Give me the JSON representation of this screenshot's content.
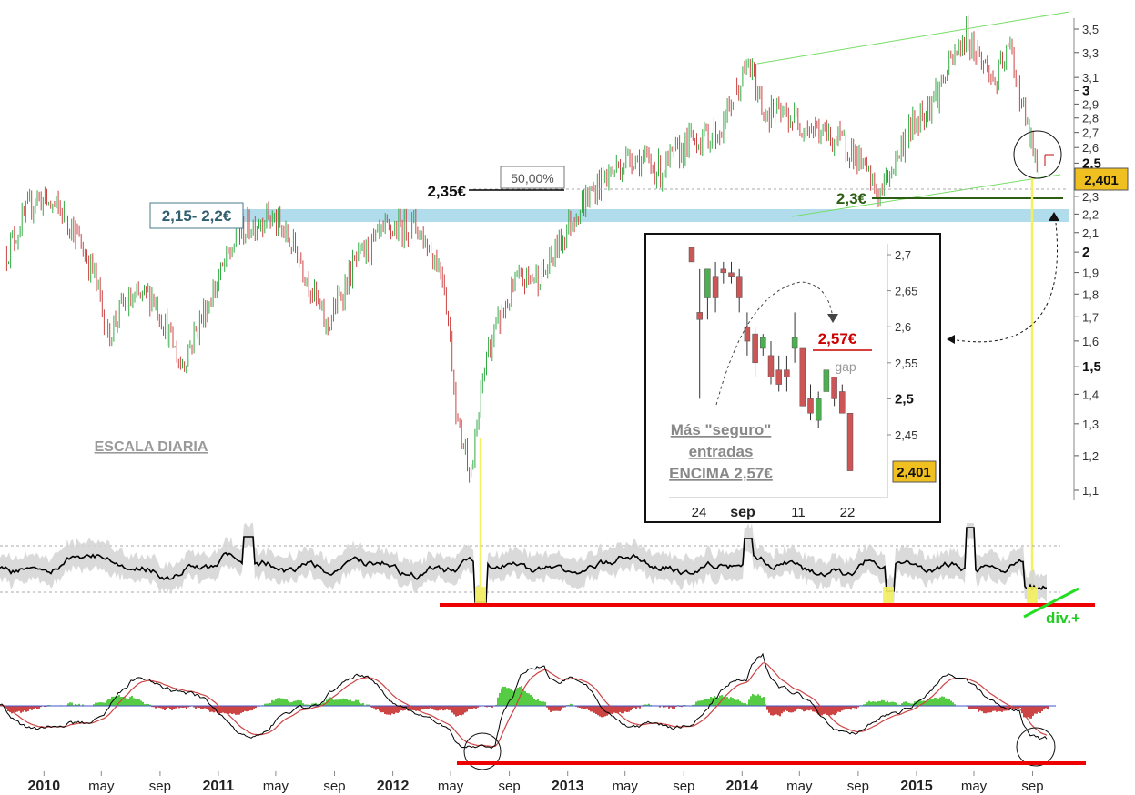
{
  "chart_data": [
    {
      "type": "line",
      "panel": "price",
      "scale": "log",
      "ylim": [
        1.08,
        3.62
      ],
      "yticks": [
        "3,5",
        "3,3",
        "3,1",
        "3",
        "2,9",
        "2,8",
        "2,7",
        "2,6",
        "2,5",
        "2,3",
        "2,2",
        "2,1",
        "2",
        "1,9",
        "1,8",
        "1,7",
        "1,6",
        "1,5",
        "1,4",
        "1,3",
        "1,2",
        "1,1"
      ],
      "ytick_values": [
        3.5,
        3.3,
        3.1,
        3.0,
        2.9,
        2.8,
        2.7,
        2.6,
        2.5,
        2.3,
        2.2,
        2.1,
        2.0,
        1.9,
        1.8,
        1.7,
        1.6,
        1.5,
        1.4,
        1.3,
        1.2,
        1.1
      ],
      "ytick_bold": [
        "3",
        "2,5",
        "2",
        "1,5"
      ],
      "x_ticks": [
        "2010",
        "may",
        "sep",
        "2011",
        "may",
        "sep",
        "2012",
        "may",
        "sep",
        "2013",
        "may",
        "sep",
        "2014",
        "may",
        "sep",
        "2015",
        "may",
        "sep"
      ],
      "x_ticks_bold": [
        "2010",
        "2011",
        "2012",
        "2013",
        "2014",
        "2015"
      ],
      "close_series_approx": [
        {
          "x": "2009-10",
          "y": 2.0
        },
        {
          "x": "2009-12",
          "y": 2.3
        },
        {
          "x": "2010-02",
          "y": 2.2
        },
        {
          "x": "2010-04",
          "y": 1.9
        },
        {
          "x": "2010-05",
          "y": 1.62
        },
        {
          "x": "2010-06",
          "y": 1.75
        },
        {
          "x": "2010-08",
          "y": 1.8
        },
        {
          "x": "2010-10",
          "y": 1.5
        },
        {
          "x": "2010-12",
          "y": 1.78
        },
        {
          "x": "2011-02",
          "y": 2.1
        },
        {
          "x": "2011-04",
          "y": 2.2
        },
        {
          "x": "2011-06",
          "y": 2.0
        },
        {
          "x": "2011-08",
          "y": 1.65
        },
        {
          "x": "2011-10",
          "y": 1.95
        },
        {
          "x": "2011-12",
          "y": 2.1
        },
        {
          "x": "2012-02",
          "y": 2.15
        },
        {
          "x": "2012-04",
          "y": 1.9
        },
        {
          "x": "2012-05",
          "y": 1.3
        },
        {
          "x": "2012-06",
          "y": 1.15
        },
        {
          "x": "2012-07",
          "y": 1.55
        },
        {
          "x": "2012-09",
          "y": 1.85
        },
        {
          "x": "2012-11",
          "y": 1.9
        },
        {
          "x": "2013-01",
          "y": 2.2
        },
        {
          "x": "2013-03",
          "y": 2.4
        },
        {
          "x": "2013-05",
          "y": 2.55
        },
        {
          "x": "2013-07",
          "y": 2.45
        },
        {
          "x": "2013-09",
          "y": 2.65
        },
        {
          "x": "2013-11",
          "y": 2.7
        },
        {
          "x": "2014-01",
          "y": 3.2
        },
        {
          "x": "2014-02",
          "y": 2.85
        },
        {
          "x": "2014-04",
          "y": 2.8
        },
        {
          "x": "2014-06",
          "y": 2.7
        },
        {
          "x": "2014-08",
          "y": 2.6
        },
        {
          "x": "2014-10",
          "y": 2.3
        },
        {
          "x": "2014-12",
          "y": 2.7
        },
        {
          "x": "2015-02",
          "y": 3.0
        },
        {
          "x": "2015-04",
          "y": 3.45
        },
        {
          "x": "2015-06",
          "y": 3.05
        },
        {
          "x": "2015-07",
          "y": 3.35
        },
        {
          "x": "2015-08",
          "y": 2.8
        },
        {
          "x": "2015-09",
          "y": 2.4
        }
      ],
      "last_value_label": "2,401",
      "annotations": {
        "zone_label": "2,15- 2,2€",
        "zone_range": [
          2.15,
          2.2
        ],
        "level_235": "2,35€",
        "fib_label": "50,00%",
        "level_23": "2,3€",
        "scale_note": "ESCALA DIARIA"
      }
    },
    {
      "type": "bar",
      "panel": "inset",
      "title": "",
      "y_ticks": [
        "2,7",
        "2,65",
        "2,6",
        "2,55",
        "2,5",
        "2,45"
      ],
      "ytick_values": [
        2.7,
        2.65,
        2.6,
        2.55,
        2.5,
        2.45
      ],
      "ytick_bold": [
        "2,5"
      ],
      "ylim": [
        2.39,
        2.73
      ],
      "x_ticks": [
        "24",
        "sep",
        "11",
        "22"
      ],
      "x_ticks_bold": [
        "sep"
      ],
      "candles": [
        {
          "o": 2.71,
          "h": 2.71,
          "l": 2.69,
          "c": 2.69
        },
        {
          "o": 2.62,
          "h": 2.68,
          "l": 2.5,
          "c": 2.61
        },
        {
          "o": 2.64,
          "h": 2.68,
          "l": 2.61,
          "c": 2.68
        },
        {
          "o": 2.67,
          "h": 2.69,
          "l": 2.62,
          "c": 2.64
        },
        {
          "o": 2.68,
          "h": 2.69,
          "l": 2.66,
          "c": 2.675
        },
        {
          "o": 2.675,
          "h": 2.69,
          "l": 2.66,
          "c": 2.67
        },
        {
          "o": 2.67,
          "h": 2.68,
          "l": 2.62,
          "c": 2.64
        },
        {
          "o": 2.6,
          "h": 2.62,
          "l": 2.56,
          "c": 2.58
        },
        {
          "o": 2.59,
          "h": 2.6,
          "l": 2.53,
          "c": 2.55
        },
        {
          "o": 2.57,
          "h": 2.59,
          "l": 2.56,
          "c": 2.585
        },
        {
          "o": 2.56,
          "h": 2.58,
          "l": 2.52,
          "c": 2.53
        },
        {
          "o": 2.54,
          "h": 2.56,
          "l": 2.51,
          "c": 2.52
        },
        {
          "o": 2.54,
          "h": 2.56,
          "l": 2.51,
          "c": 2.53
        },
        {
          "o": 2.57,
          "h": 2.62,
          "l": 2.55,
          "c": 2.585
        },
        {
          "o": 2.57,
          "h": 2.57,
          "l": 2.49,
          "c": 2.49
        },
        {
          "o": 2.5,
          "h": 2.52,
          "l": 2.47,
          "c": 2.48
        },
        {
          "o": 2.47,
          "h": 2.51,
          "l": 2.46,
          "c": 2.5
        },
        {
          "o": 2.51,
          "h": 2.54,
          "l": 2.51,
          "c": 2.54
        },
        {
          "o": 2.53,
          "h": 2.53,
          "l": 2.49,
          "c": 2.5
        },
        {
          "o": 2.51,
          "h": 2.52,
          "l": 2.48,
          "c": 2.48
        },
        {
          "o": 2.48,
          "h": 2.48,
          "l": 2.4,
          "c": 2.4
        }
      ],
      "annotations": {
        "level_257": "2,57€",
        "gap": "gap",
        "note_line1": "Más \"seguro\"",
        "note_line2": "entradas",
        "note_line3": "ENCIMA 2,57€",
        "last_value_label": "2,401"
      }
    },
    {
      "type": "line",
      "panel": "oscillator",
      "annotation": "div.+",
      "colors": {
        "line": "#000000",
        "band": "#d3d3d3",
        "support": "#ee0000"
      }
    },
    {
      "type": "area",
      "panel": "macd",
      "colors": {
        "positive": "#55cc44",
        "negative": "#cc4444",
        "fast": "#000000",
        "slow": "#cc4444"
      }
    }
  ]
}
